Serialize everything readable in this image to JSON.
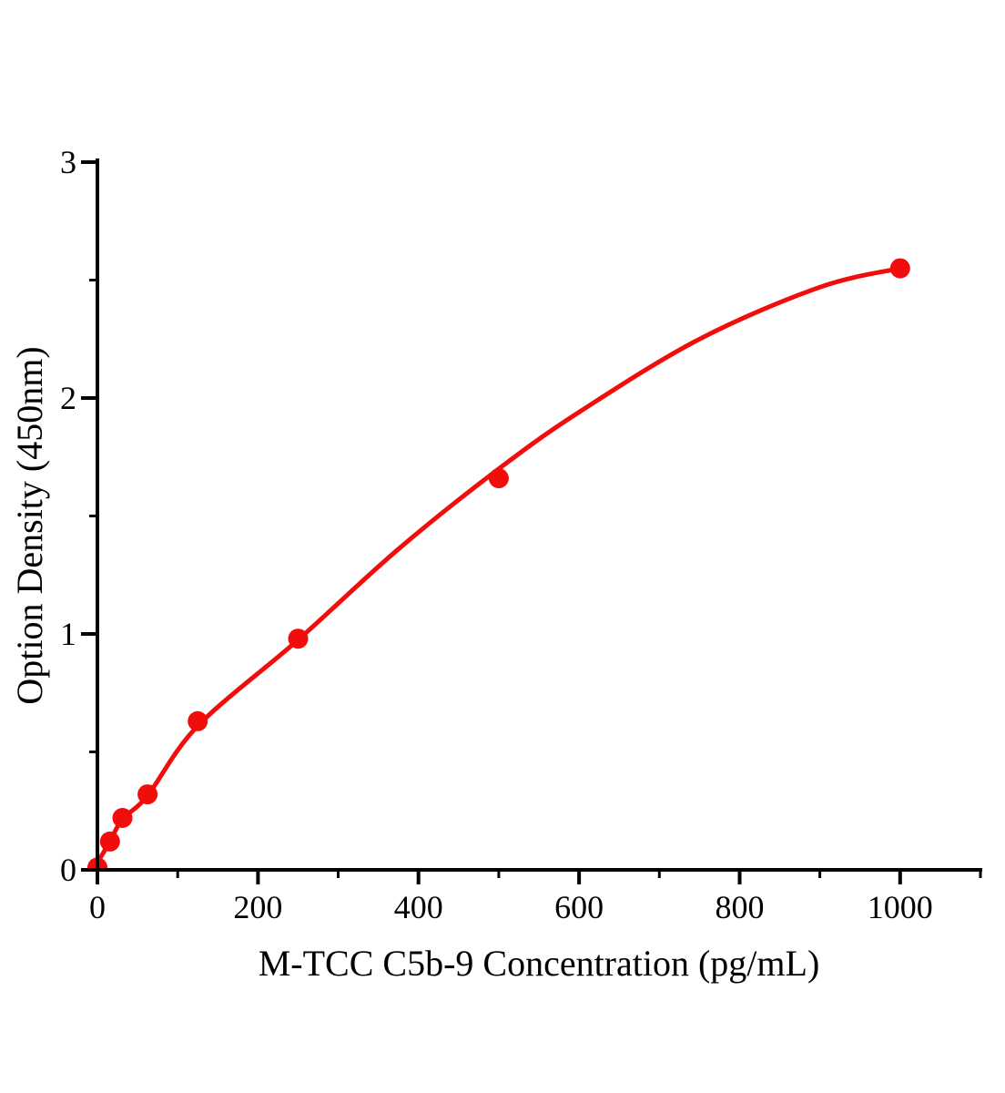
{
  "figure": {
    "background": "#ffffff",
    "axis_color": "#000000",
    "accent_color": "#f20d0d"
  },
  "chart_data": {
    "type": "scatter",
    "title": "",
    "xlabel": "M-TCC C5b-9 Concentration (pg/mL)",
    "ylabel": "Option Density (450nm)",
    "xlim": [
      0,
      1100
    ],
    "ylim": [
      0,
      3
    ],
    "x_major_ticks": [
      0,
      200,
      400,
      600,
      800,
      1000
    ],
    "x_tick_labels": [
      "0",
      "200",
      "400",
      "600",
      "800",
      "1000"
    ],
    "x_minor_ticks": [
      100,
      300,
      500,
      700,
      900,
      1100
    ],
    "y_major_ticks": [
      0,
      1,
      2,
      3
    ],
    "y_tick_labels": [
      "0",
      "1",
      "2",
      "3"
    ],
    "y_minor_ticks": [
      0.5,
      1.5,
      2.5
    ],
    "grid": false,
    "legend": "none",
    "series": [
      {
        "name": "standard-points",
        "type": "scatter",
        "marker": "circle",
        "color": "#f20d0d",
        "x": [
          0,
          15.6,
          31.2,
          62.5,
          125,
          250,
          500,
          1000
        ],
        "y": [
          0.01,
          0.12,
          0.22,
          0.32,
          0.63,
          0.98,
          1.66,
          2.55
        ]
      },
      {
        "name": "fit-curve",
        "type": "line",
        "color": "#f20d0d",
        "x": [
          0,
          15.6,
          31.2,
          62.5,
          125,
          250,
          375,
          500,
          600,
          750,
          900,
          1000
        ],
        "y": [
          0.03,
          0.12,
          0.215,
          0.315,
          0.61,
          0.975,
          1.36,
          1.7,
          1.94,
          2.25,
          2.47,
          2.55
        ]
      }
    ]
  }
}
